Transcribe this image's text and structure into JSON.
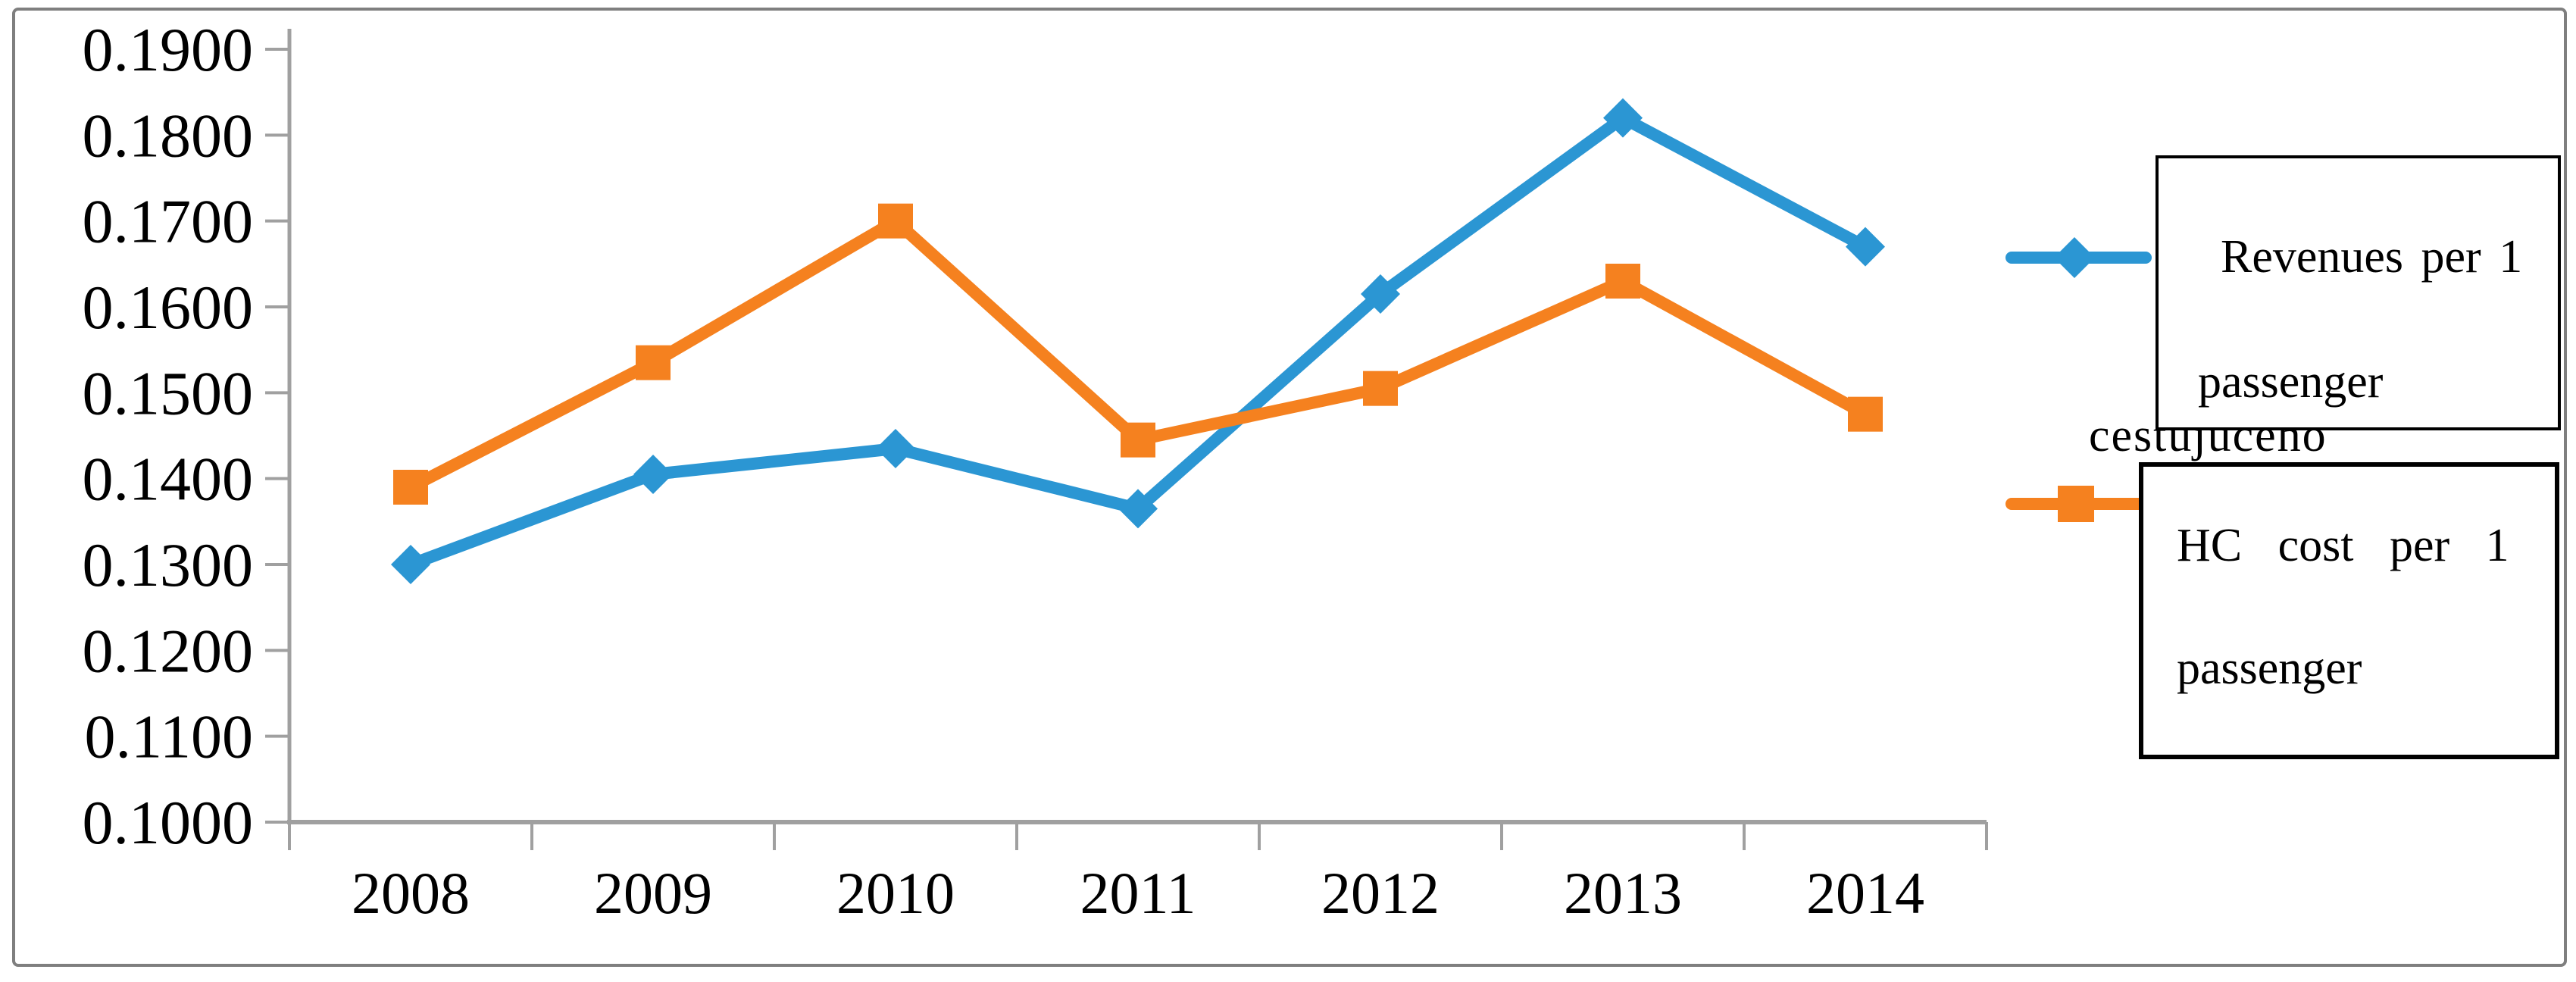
{
  "figure": {
    "occluded_text": "cestujuceho",
    "frame_color": "#7f7f7f",
    "background_color": "#ffffff"
  },
  "legend": {
    "items": [
      {
        "series": "revenues",
        "line1": "Revenues per 1",
        "line2": "passenger",
        "marker": "diamond",
        "color": "#2b96d3"
      },
      {
        "series": "hc_cost",
        "line1": "HC cost per 1",
        "line2": "passenger",
        "marker": "square",
        "color": "#f5811f"
      }
    ]
  },
  "chart_data": {
    "type": "line",
    "title": "",
    "xlabel": "",
    "ylabel": "",
    "grid": false,
    "legend_position": "right",
    "axis_color": "#a0a0a0",
    "categories": [
      "2008",
      "2009",
      "2010",
      "2011",
      "2012",
      "2013",
      "2014"
    ],
    "series": [
      {
        "name": "Revenues per 1 passenger",
        "color": "#2b96d3",
        "marker": "diamond",
        "values": [
          0.13,
          0.1405,
          0.1435,
          0.1365,
          0.1615,
          0.182,
          0.167
        ]
      },
      {
        "name": "HC cost per 1 passenger",
        "color": "#f5811f",
        "marker": "square",
        "values": [
          0.139,
          0.1535,
          0.17,
          0.1445,
          0.1505,
          0.163,
          0.1475
        ]
      }
    ],
    "y_axis": {
      "min": 0.1,
      "max": 0.19,
      "tick_step": 0.01,
      "tick_labels": [
        "0.1900",
        "0.1800",
        "0.1700",
        "0.1600",
        "0.1500",
        "0.1400",
        "0.1300",
        "0.1200",
        "0.1100",
        "0.1000"
      ]
    },
    "x_axis": {
      "tick_labels": [
        "2008",
        "2009",
        "2010",
        "2011",
        "2012",
        "2013",
        "2014"
      ]
    }
  }
}
